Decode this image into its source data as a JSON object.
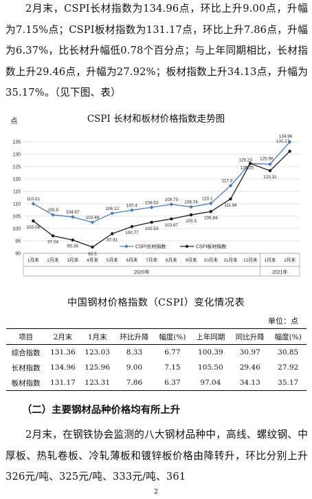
{
  "paragraph1": "2月末，CSPI长材指数为134.96点，环比上升9.00点，升幅为7.15%点；CSPI板材指数为131.17点，环比上升7.86点，升幅为6.37%，比长材升幅低0.78个百分点；与上年同期相比，长材指数上升29.46点，升幅为27.92%；板材指数上升34.13点，升幅为35.17%。（见下图、表）",
  "chart_data": {
    "type": "line",
    "title": "CSPI 长材和板材价格指数走势图",
    "ylabel": "点",
    "ylim": [
      90,
      135
    ],
    "yticks": [
      90,
      95,
      100,
      105,
      110,
      115,
      120,
      125,
      130,
      135
    ],
    "categories": [
      "1月末",
      "2月末",
      "3月末",
      "4月末",
      "5月末",
      "6月末",
      "7月末",
      "8月末",
      "9月末",
      "10月末",
      "11月末",
      "12月末",
      "1月末",
      "2月末"
    ],
    "year_labels": [
      "2020年",
      "2021年"
    ],
    "grid": true,
    "legend": "bottom",
    "series": [
      {
        "name": "CSPI长材指数",
        "color": "#4a7ac6",
        "marker": "diamond",
        "values": [
          110.01,
          105.5,
          104.67,
          102.49,
          106.12,
          107.4,
          108.53,
          109.75,
          108.74,
          110.1,
          117.3,
          126.23,
          125.96,
          134.96
        ],
        "labels": [
          "110.01",
          "105.5",
          "104.67",
          "102.49",
          "106.12",
          "107.4",
          "108.53",
          "109.75",
          "108.74",
          "110.1",
          "117.3",
          "126.23",
          "125.96",
          "134.96"
        ]
      },
      {
        "name": "CSPI板材指数",
        "color": "#1a1a1a",
        "marker": "circle",
        "values": [
          103.06,
          97.04,
          95.36,
          92.5,
          97.91,
          100.77,
          102.53,
          103.87,
          105.5,
          106.84,
          111.94,
          126.25,
          123.31,
          131.17
        ],
        "labels": [
          "103.06",
          "97.04",
          "95.36",
          "92.5",
          "97.91",
          "100.77",
          "102.53",
          "103.87",
          "105.5",
          "106.84",
          "111.94",
          "126.25",
          "123.31",
          "131.17"
        ]
      }
    ]
  },
  "table_title": "中国钢材价格指数（CSPI）变化情况表",
  "table_unit": "单位：点",
  "table": {
    "headers": [
      "项目",
      "2月末",
      "1月末",
      "环比升降",
      "幅度(%)",
      "上年同期",
      "同比升降",
      "幅度(%)"
    ],
    "rows": [
      [
        "综合指数",
        "131.36",
        "123.03",
        "8.33",
        "6.77",
        "100.39",
        "30.97",
        "30.85"
      ],
      [
        "长材指数",
        "134.96",
        "125.96",
        "9.00",
        "7.15",
        "105.50",
        "29.46",
        "27.92"
      ],
      [
        "板材指数",
        "131.17",
        "123.31",
        "7.86",
        "6.37",
        "97.04",
        "34.13",
        "35.17"
      ]
    ]
  },
  "section_heading": "（二）主要钢材品种价格均有所上升",
  "paragraph2": "2月末，在钢铁协会监测的八大钢材品种中，高线、螺纹钢、中厚板、热轧卷板、冷轧薄板和镀锌板价格由降转升，环比分别上升326元/吨、325元/吨、333元/吨、361",
  "page_number": "2"
}
